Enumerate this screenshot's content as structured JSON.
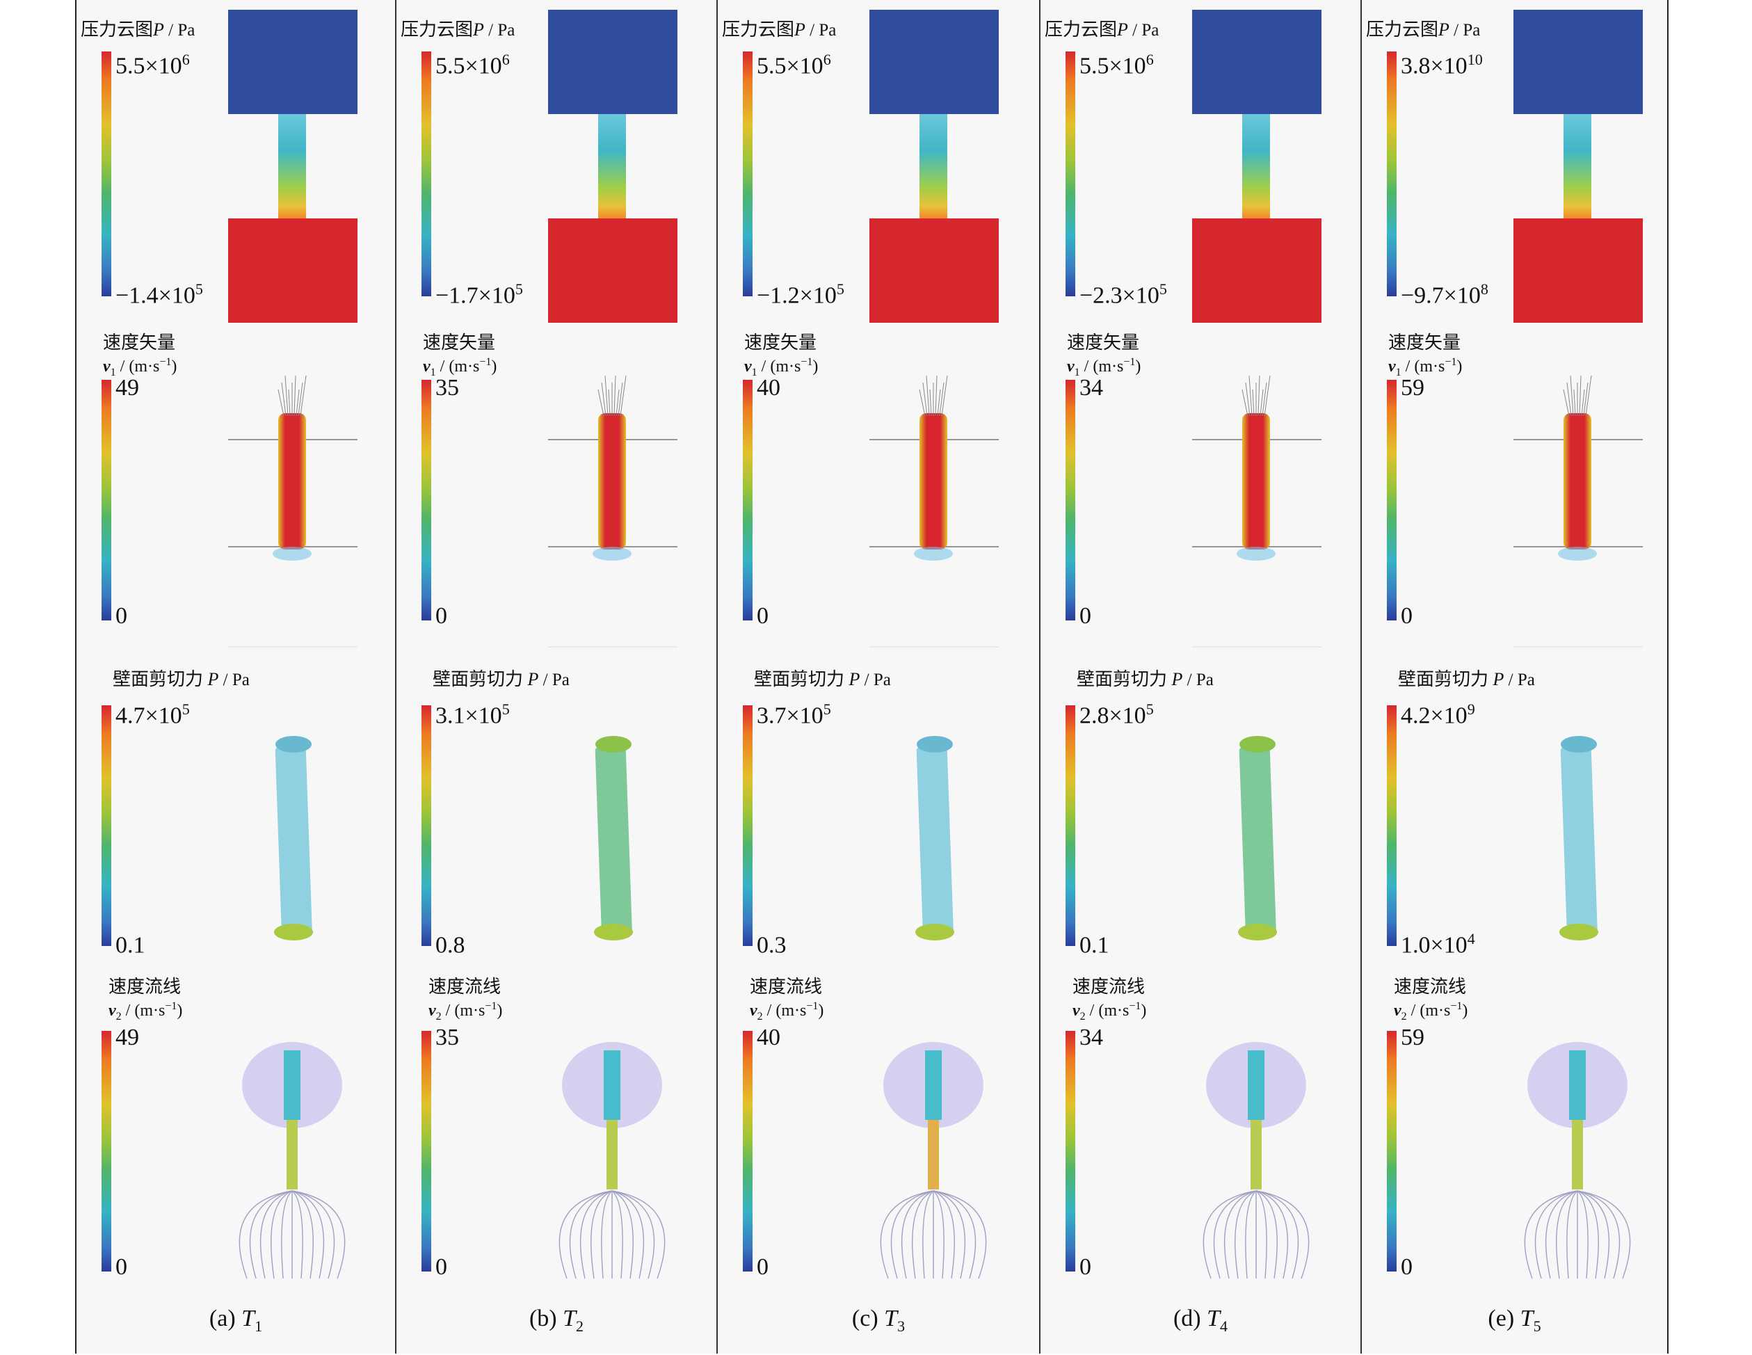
{
  "titles": {
    "pressure": "压力云图",
    "pressure_sym": "P",
    "pressure_unit": " / Pa",
    "velocity_vector": "速度矢量",
    "velocity_vector_sym": "v",
    "velocity_vector_sub": "1",
    "velocity_unit": " / (m·s",
    "velocity_unit_exp": "−1",
    "velocity_unit_close": ")",
    "shear": "壁面剪切力 ",
    "shear_sym": "P",
    "shear_unit": " / Pa",
    "streamline": "速度流线",
    "streamline_sym": "v",
    "streamline_sub": "2"
  },
  "columns": [
    {
      "label": "(a) ",
      "case": "T",
      "case_sub": "1",
      "pressure": {
        "max_m": "5.5×10",
        "max_e": "6",
        "min_m": "−1.4×10",
        "min_e": "5"
      },
      "vector": {
        "max": "49",
        "min": "0"
      },
      "shear": {
        "max_m": "4.7×10",
        "max_e": "5",
        "min_m": "0.1",
        "min_e": ""
      },
      "stream": {
        "max": "49",
        "min": "0"
      }
    },
    {
      "label": "(b) ",
      "case": "T",
      "case_sub": "2",
      "pressure": {
        "max_m": "5.5×10",
        "max_e": "6",
        "min_m": "−1.7×10",
        "min_e": "5"
      },
      "vector": {
        "max": "35",
        "min": "0"
      },
      "shear": {
        "max_m": "3.1×10",
        "max_e": "5",
        "min_m": "0.8",
        "min_e": ""
      },
      "stream": {
        "max": "35",
        "min": "0"
      }
    },
    {
      "label": "(c) ",
      "case": "T",
      "case_sub": "3",
      "pressure": {
        "max_m": "5.5×10",
        "max_e": "6",
        "min_m": "−1.2×10",
        "min_e": "5"
      },
      "vector": {
        "max": "40",
        "min": "0"
      },
      "shear": {
        "max_m": "3.7×10",
        "max_e": "5",
        "min_m": "0.3",
        "min_e": ""
      },
      "stream": {
        "max": "40",
        "min": "0"
      }
    },
    {
      "label": "(d) ",
      "case": "T",
      "case_sub": "4",
      "pressure": {
        "max_m": "5.5×10",
        "max_e": "6",
        "min_m": "−2.3×10",
        "min_e": "5"
      },
      "vector": {
        "max": "34",
        "min": "0"
      },
      "shear": {
        "max_m": "2.8×10",
        "max_e": "5",
        "min_m": "0.1",
        "min_e": ""
      },
      "stream": {
        "max": "34",
        "min": "0"
      }
    },
    {
      "label": "(e) ",
      "case": "T",
      "case_sub": "5",
      "pressure": {
        "max_m": "3.8×10",
        "max_e": "10",
        "min_m": "−9.7×10",
        "min_e": "8"
      },
      "vector": {
        "max": "59",
        "min": "0"
      },
      "shear": {
        "max_m": "4.2×10",
        "max_e": "9",
        "min_m": "1.0×10",
        "min_e": "4"
      },
      "stream": {
        "max": "59",
        "min": "0"
      }
    }
  ],
  "colors": {
    "high": "#d6262e",
    "low": "#2b3c9a",
    "cyan": "#6cc7da",
    "green": "#7ec89a",
    "lavender": "#b7b3ea"
  }
}
